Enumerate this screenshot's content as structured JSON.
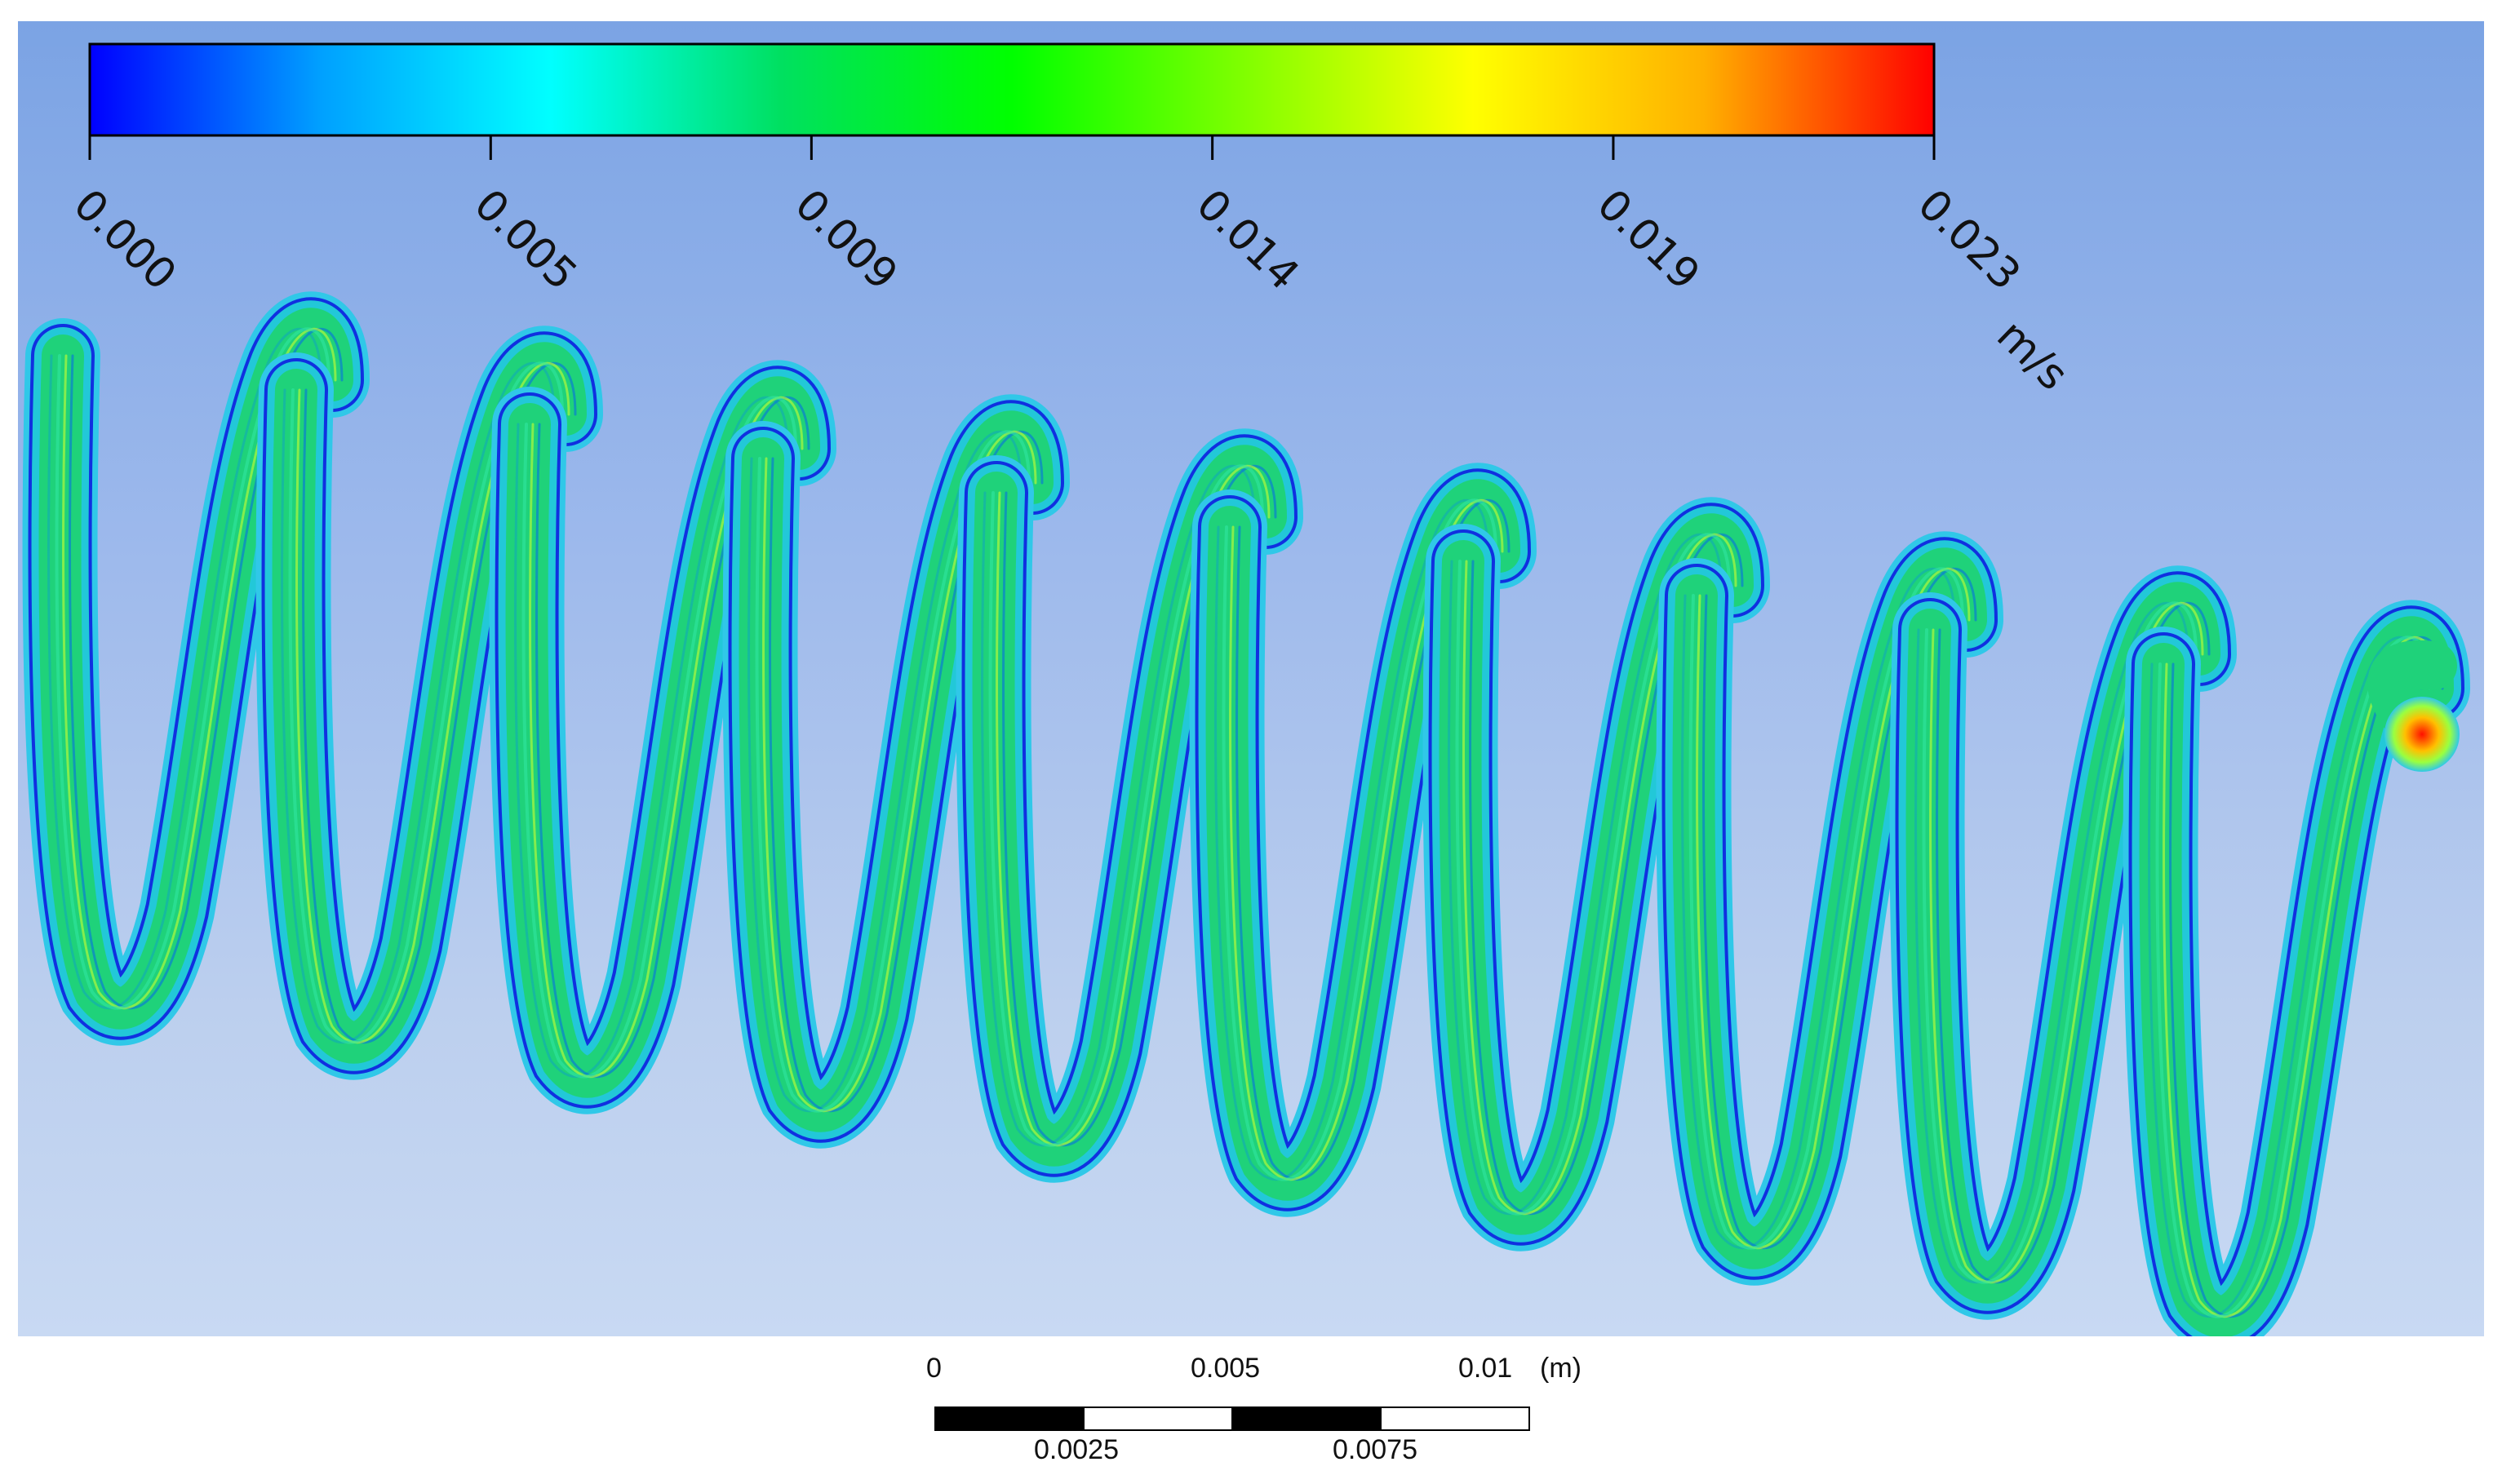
{
  "colorbar": {
    "min": 0.0,
    "max": 0.023,
    "ticks": [
      {
        "value": 0.0,
        "label": "0.000"
      },
      {
        "value": 0.005,
        "label": "0.005"
      },
      {
        "value": 0.009,
        "label": "0.009"
      },
      {
        "value": 0.014,
        "label": "0.014"
      },
      {
        "value": 0.019,
        "label": "0.019"
      },
      {
        "value": 0.023,
        "label": "0.023"
      }
    ],
    "unit": "m/s",
    "gradient_stops": [
      "#0000ff",
      "#00a0ff",
      "#00ffff",
      "#00e060",
      "#00ff00",
      "#7fff00",
      "#ffff00",
      "#ffb000",
      "#ff0000"
    ]
  },
  "scale_bar": {
    "top_labels": [
      "0",
      "0.005",
      "0.01"
    ],
    "unit": "(m)",
    "bottom_labels": [
      "0.0025",
      "0.0075"
    ]
  },
  "colors": {
    "background_top": "#7ba3e4",
    "background_bottom": "#c8d9f3",
    "coil_body": "#1fd27a",
    "coil_edge": "#1030e0",
    "coil_halo": "#30c8e8",
    "inlet_hot": "#ff2000"
  }
}
